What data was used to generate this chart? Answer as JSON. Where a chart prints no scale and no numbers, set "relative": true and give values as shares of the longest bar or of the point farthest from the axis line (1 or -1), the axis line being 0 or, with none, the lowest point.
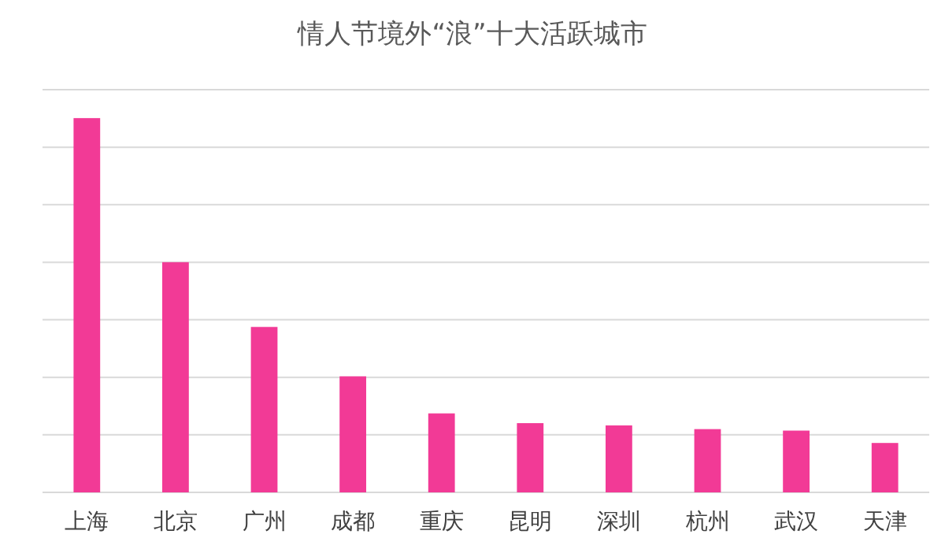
{
  "chart_data": {
    "type": "bar",
    "title": "情人节境外“浪”十大活跃城市",
    "categories": [
      "上海",
      "北京",
      "广州",
      "成都",
      "重庆",
      "昆明",
      "深圳",
      "杭州",
      "武汉",
      "天津"
    ],
    "relative": true,
    "grid": "y",
    "series": [
      {
        "color": "#f23a96",
        "values": [
          1,
          0.615,
          0.442,
          0.31,
          0.211,
          0.185,
          0.179,
          0.169,
          0.165,
          0.132
        ]
      }
    ]
  }
}
